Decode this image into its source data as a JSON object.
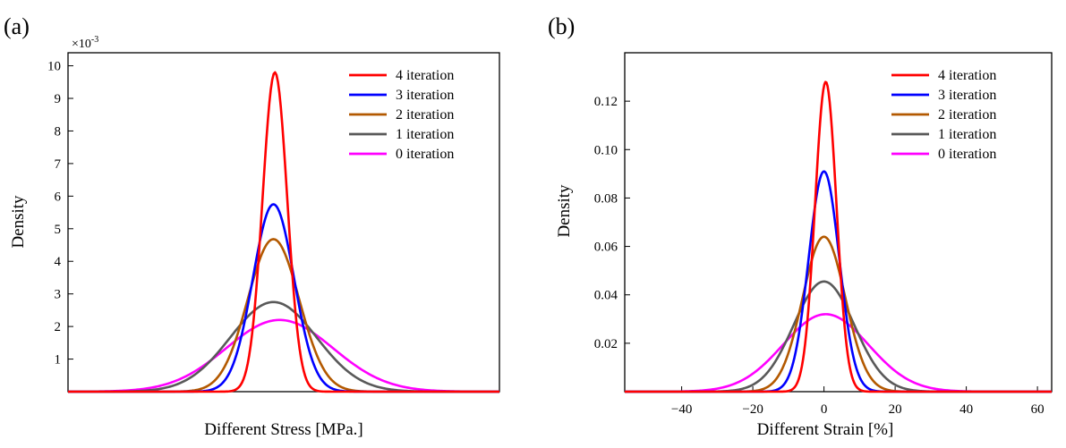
{
  "chart_data": [
    {
      "type": "line",
      "panel_label": "(a)",
      "xlabel": "Different Stress [MPa.]",
      "ylabel": "Density",
      "y_multiplier_label": "×10",
      "y_multiplier_exp": "-3",
      "x_ticks_shown": false,
      "y_ticks": [
        "1",
        "2",
        "3",
        "4",
        "5",
        "6",
        "7",
        "8",
        "9",
        "10"
      ],
      "grid": false,
      "legend_position": "top-right",
      "series": [
        {
          "name": "4 iteration",
          "color": "#ff0000",
          "peak": 9.8,
          "center": 0.07,
          "sigma": 0.6
        },
        {
          "name": "3 iteration",
          "color": "#0000ff",
          "peak": 5.75,
          "center": 0.0,
          "sigma": 1.0
        },
        {
          "name": "2 iteration",
          "color": "#b35900",
          "peak": 4.68,
          "center": 0.0,
          "sigma": 1.25
        },
        {
          "name": "1 iteration",
          "color": "#595959",
          "peak": 2.75,
          "center": 0.0,
          "sigma": 2.1
        },
        {
          "name": "0 iteration",
          "color": "#ff00ff",
          "peak": 2.2,
          "center": 0.3,
          "sigma": 2.6
        }
      ]
    },
    {
      "type": "line",
      "panel_label": "(b)",
      "xlabel": "Different Strain [%]",
      "ylabel": "Density",
      "x_ticks": [
        -40,
        -20,
        0,
        20,
        40,
        60
      ],
      "x_tick_labels": [
        "−40",
        "−20",
        "0",
        "20",
        "40",
        "60"
      ],
      "xlim": [
        -56,
        64
      ],
      "y_ticks": [
        "0.02",
        "0.04",
        "0.06",
        "0.08",
        "0.10",
        "0.12"
      ],
      "ylim": [
        0,
        0.14
      ],
      "grid": false,
      "legend_position": "top-right",
      "series": [
        {
          "name": "4 iteration",
          "color": "#ff0000",
          "peak": 0.128,
          "center": 0.5,
          "sigma": 3.0
        },
        {
          "name": "3 iteration",
          "color": "#0000ff",
          "peak": 0.091,
          "center": 0.0,
          "sigma": 4.3
        },
        {
          "name": "2 iteration",
          "color": "#b35900",
          "peak": 0.064,
          "center": 0.0,
          "sigma": 6.0
        },
        {
          "name": "1 iteration",
          "color": "#595959",
          "peak": 0.0455,
          "center": 0.0,
          "sigma": 8.5
        },
        {
          "name": "0 iteration",
          "color": "#ff00ff",
          "peak": 0.032,
          "center": 0.5,
          "sigma": 12.0
        }
      ]
    }
  ]
}
